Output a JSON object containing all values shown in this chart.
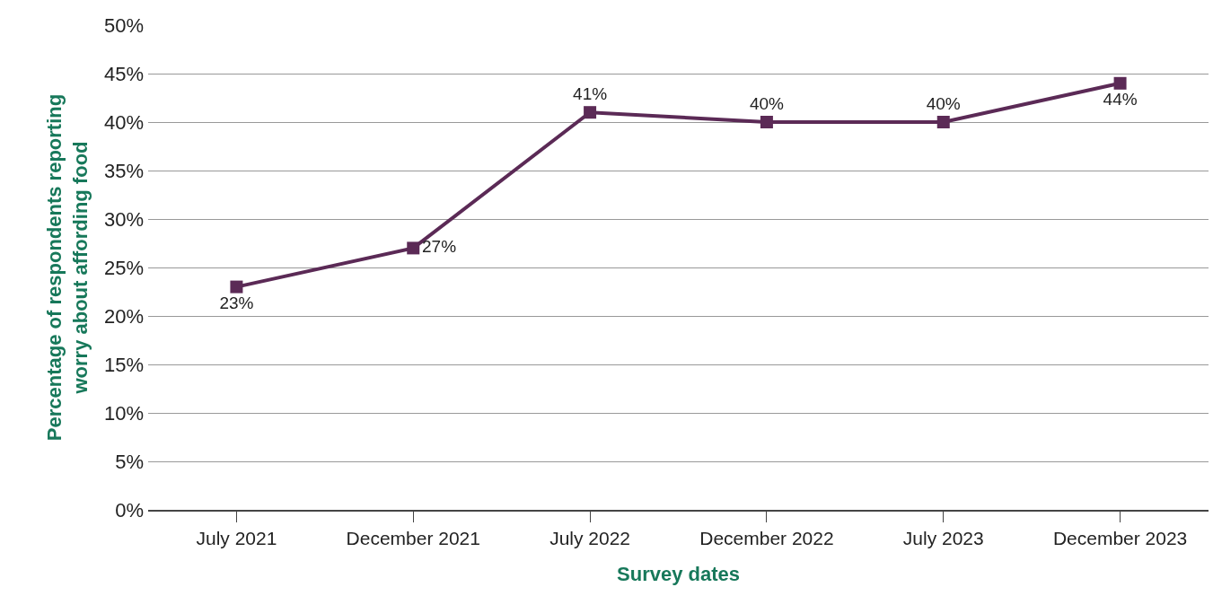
{
  "chart_data": {
    "type": "line",
    "xlabel": "Survey dates",
    "ylabel": "Percentage of respondents reporting worry about affording food",
    "categories": [
      "July 2021",
      "December 2021",
      "July 2022",
      "December 2022",
      "July 2023",
      "December 2023"
    ],
    "series": [
      {
        "color": "#5b2a56",
        "values": [
          23,
          27,
          41,
          40,
          40,
          44
        ],
        "value_labels": [
          "23%",
          "27%",
          "41%",
          "40%",
          "40%",
          "44%"
        ]
      }
    ],
    "ylim": [
      0,
      50
    ],
    "yticks": [
      {
        "value": 0,
        "label": "0%"
      },
      {
        "value": 5,
        "label": "5%"
      },
      {
        "value": 10,
        "label": "10%"
      },
      {
        "value": 15,
        "label": "15%"
      },
      {
        "value": 20,
        "label": "20%"
      },
      {
        "value": 25,
        "label": "25%"
      },
      {
        "value": 30,
        "label": "30%"
      },
      {
        "value": 35,
        "label": "35%"
      },
      {
        "value": 40,
        "label": "40%"
      },
      {
        "value": 45,
        "label": "45%"
      },
      {
        "value": 50,
        "label": "50%"
      }
    ],
    "grid": "y",
    "marker": "square",
    "line_style": "solid"
  }
}
